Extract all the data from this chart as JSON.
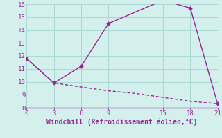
{
  "line1_x": [
    0,
    3,
    6,
    9,
    15,
    18,
    21
  ],
  "line1_y": [
    11.8,
    9.9,
    11.2,
    14.5,
    16.3,
    15.7,
    8.3
  ],
  "line2_x": [
    0,
    3,
    6,
    9,
    12,
    15,
    18,
    21
  ],
  "line2_y": [
    11.8,
    9.9,
    9.6,
    9.3,
    9.1,
    8.8,
    8.5,
    8.3
  ],
  "line_color": "#992299",
  "bg_color": "#d4f0ec",
  "grid_color": "#aad8d4",
  "xlabel": "Windchill (Refroidissement éolien,°C)",
  "xlim": [
    0,
    21
  ],
  "ylim": [
    8,
    16
  ],
  "xticks": [
    0,
    3,
    6,
    9,
    15,
    18,
    21
  ],
  "yticks": [
    8,
    9,
    10,
    11,
    12,
    13,
    14,
    15,
    16
  ],
  "xlabel_fontsize": 7,
  "tick_fontsize": 6.5,
  "line_width": 1.0,
  "marker": "D",
  "marker_size": 2.5,
  "fig_width": 3.2,
  "fig_height": 2.0,
  "dpi": 100
}
